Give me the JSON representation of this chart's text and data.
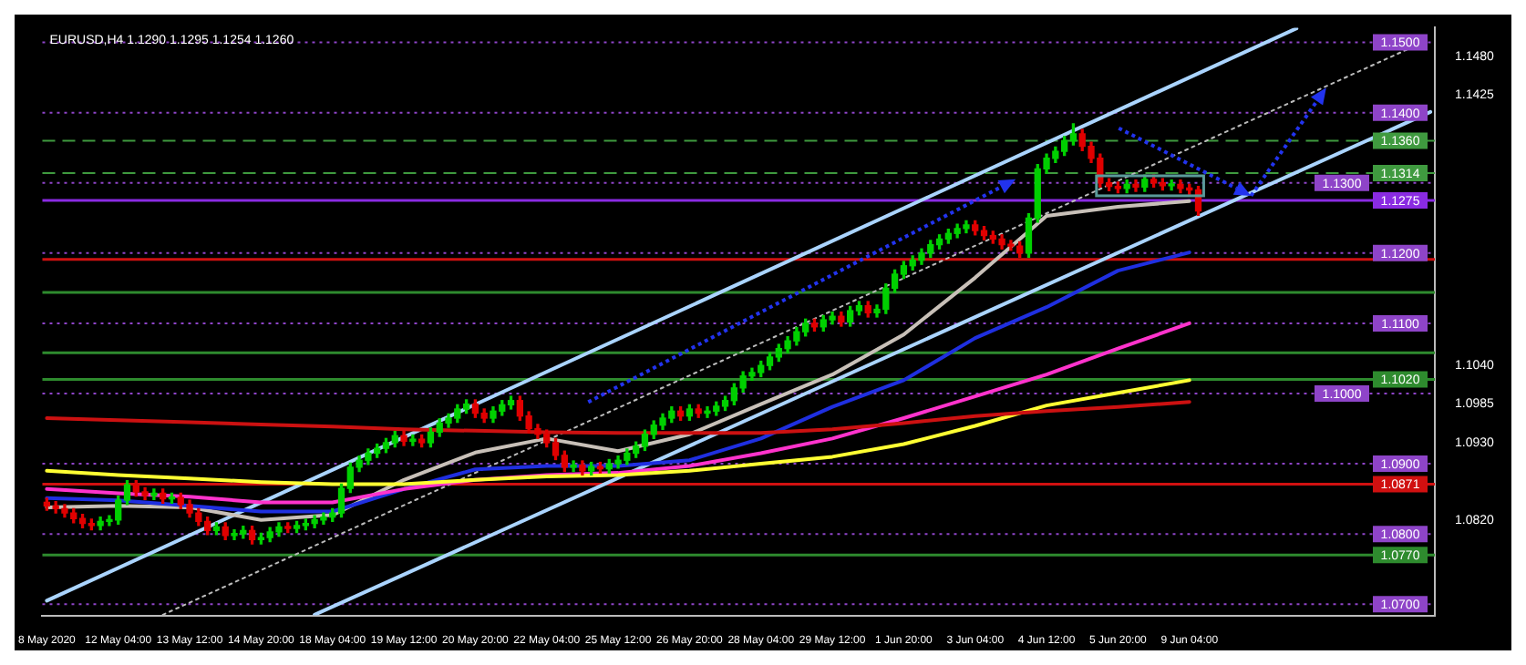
{
  "chart_data": {
    "type": "candlestick",
    "title": "EURUSD,H4 1.1290 1.1295 1.1254 1.1260",
    "categories": [
      "8 May 2020",
      null,
      null,
      null,
      null,
      null,
      null,
      null,
      "12 May 04:00",
      null,
      null,
      null,
      null,
      null,
      null,
      null,
      "13 May 12:00",
      null,
      null,
      null,
      null,
      null,
      null,
      null,
      "14 May 20:00",
      null,
      null,
      null,
      null,
      null,
      null,
      null,
      "18 May 04:00",
      null,
      null,
      null,
      null,
      null,
      null,
      null,
      "19 May 12:00",
      null,
      null,
      null,
      null,
      null,
      null,
      null,
      "20 May 20:00",
      null,
      null,
      null,
      null,
      null,
      null,
      null,
      "22 May 04:00",
      null,
      null,
      null,
      null,
      null,
      null,
      null,
      "25 May 12:00",
      null,
      null,
      null,
      null,
      null,
      null,
      null,
      "26 May 20:00",
      null,
      null,
      null,
      null,
      null,
      null,
      null,
      "28 May 04:00",
      null,
      null,
      null,
      null,
      null,
      null,
      null,
      "29 May 12:00",
      null,
      null,
      null,
      null,
      null,
      null,
      null,
      "1 Jun 20:00",
      null,
      null,
      null,
      null,
      null,
      null,
      null,
      "3 Jun 04:00",
      null,
      null,
      null,
      null,
      null,
      null,
      null,
      "4 Jun 12:00",
      null,
      null,
      null,
      null,
      null,
      null,
      null,
      "5 Jun 20:00",
      null,
      null,
      null,
      null,
      null,
      null,
      null,
      "9 Jun 04:00",
      null,
      null,
      null,
      null,
      null,
      null,
      null,
      null,
      null,
      null,
      null,
      null,
      null,
      null,
      null,
      null,
      null,
      null,
      null,
      null,
      null,
      null,
      null,
      null,
      null,
      null,
      null
    ],
    "ohlc": [
      [
        1.0845,
        1.0851,
        1.0834,
        1.084
      ],
      [
        1.084,
        1.0846,
        1.083,
        1.0836
      ],
      [
        1.0836,
        1.0842,
        1.0824,
        1.083
      ],
      [
        1.083,
        1.0836,
        1.0816,
        1.0822
      ],
      [
        1.0822,
        1.0828,
        1.0809,
        1.0815
      ],
      [
        1.0815,
        1.0821,
        1.0806,
        1.0812
      ],
      [
        1.0812,
        1.0824,
        1.0806,
        1.0818
      ],
      [
        1.0818,
        1.0826,
        1.0812,
        1.082
      ],
      [
        1.082,
        1.0854,
        1.0814,
        1.0848
      ],
      [
        1.0848,
        1.0876,
        1.0842,
        1.087
      ],
      [
        1.087,
        1.0876,
        1.0854,
        1.086
      ],
      [
        1.086,
        1.0866,
        1.0849,
        1.0855
      ],
      [
        1.0855,
        1.0864,
        1.0849,
        1.0858
      ],
      [
        1.0858,
        1.0864,
        1.0844,
        1.085
      ],
      [
        1.085,
        1.0858,
        1.0844,
        1.0852
      ],
      [
        1.0852,
        1.0858,
        1.0836,
        1.0842
      ],
      [
        1.0842,
        1.0848,
        1.0824,
        1.083
      ],
      [
        1.083,
        1.0836,
        1.0812,
        1.0818
      ],
      [
        1.0818,
        1.0824,
        1.0799,
        1.0805
      ],
      [
        1.0805,
        1.0816,
        1.0799,
        1.081
      ],
      [
        1.081,
        1.0816,
        1.0792,
        1.0798
      ],
      [
        1.0798,
        1.0806,
        1.0792,
        1.08
      ],
      [
        1.08,
        1.0811,
        1.0794,
        1.0805
      ],
      [
        1.0805,
        1.0811,
        1.0786,
        1.0792
      ],
      [
        1.0792,
        1.0801,
        1.0786,
        1.0795
      ],
      [
        1.0795,
        1.0809,
        1.0789,
        1.0803
      ],
      [
        1.0803,
        1.0816,
        1.0797,
        1.081
      ],
      [
        1.081,
        1.0816,
        1.0802,
        1.0808
      ],
      [
        1.0808,
        1.0818,
        1.0802,
        1.0812
      ],
      [
        1.0812,
        1.0821,
        1.0806,
        1.0815
      ],
      [
        1.0815,
        1.0826,
        1.0809,
        1.082
      ],
      [
        1.082,
        1.083,
        1.0814,
        1.0824
      ],
      [
        1.0824,
        1.0836,
        1.0818,
        1.083
      ],
      [
        1.083,
        1.0871,
        1.0824,
        1.0865
      ],
      [
        1.0865,
        1.0901,
        1.0859,
        1.0895
      ],
      [
        1.0895,
        1.0911,
        1.0889,
        1.0905
      ],
      [
        1.0905,
        1.0921,
        1.0899,
        1.0915
      ],
      [
        1.0915,
        1.0928,
        1.0909,
        1.0922
      ],
      [
        1.0922,
        1.0936,
        1.0916,
        1.093
      ],
      [
        1.093,
        1.0946,
        1.0924,
        1.094
      ],
      [
        1.094,
        1.0946,
        1.0926,
        1.0932
      ],
      [
        1.0932,
        1.0941,
        1.0926,
        1.0935
      ],
      [
        1.0935,
        1.0941,
        1.0924,
        1.093
      ],
      [
        1.093,
        1.0951,
        1.0924,
        1.0945
      ],
      [
        1.0945,
        1.0964,
        1.0939,
        1.0958
      ],
      [
        1.0958,
        1.0971,
        1.0952,
        1.0965
      ],
      [
        1.0965,
        1.0984,
        1.0959,
        1.0978
      ],
      [
        1.0978,
        1.0991,
        1.0972,
        1.0985
      ],
      [
        1.0985,
        1.0991,
        1.0966,
        1.0972
      ],
      [
        1.0972,
        1.0978,
        1.0959,
        1.0965
      ],
      [
        1.0965,
        1.0981,
        1.0959,
        1.0975
      ],
      [
        1.0975,
        1.099,
        1.0969,
        1.0984
      ],
      [
        1.0984,
        1.0996,
        1.0978,
        1.099
      ],
      [
        1.099,
        1.0996,
        1.0962,
        1.0968
      ],
      [
        1.0968,
        1.0974,
        1.0944,
        1.095
      ],
      [
        1.095,
        1.0956,
        1.0936,
        1.0942
      ],
      [
        1.0942,
        1.0948,
        1.0924,
        1.093
      ],
      [
        1.093,
        1.0936,
        1.0906,
        1.0912
      ],
      [
        1.0912,
        1.0918,
        1.0889,
        1.0895
      ],
      [
        1.0895,
        1.0904,
        1.0889,
        1.0898
      ],
      [
        1.0898,
        1.0904,
        1.0884,
        1.089
      ],
      [
        1.089,
        1.0902,
        1.0884,
        1.0896
      ],
      [
        1.0896,
        1.0902,
        1.0887,
        1.0893
      ],
      [
        1.0893,
        1.0906,
        1.0887,
        1.09
      ],
      [
        1.09,
        1.0911,
        1.0894,
        1.0905
      ],
      [
        1.0905,
        1.0921,
        1.0899,
        1.0915
      ],
      [
        1.0915,
        1.0931,
        1.0909,
        1.0925
      ],
      [
        1.0925,
        1.0948,
        1.0919,
        1.0942
      ],
      [
        1.0942,
        1.0961,
        1.0936,
        1.0955
      ],
      [
        1.0955,
        1.0971,
        1.0949,
        1.0965
      ],
      [
        1.0965,
        1.0981,
        1.0959,
        1.0975
      ],
      [
        1.0975,
        1.0981,
        1.0962,
        1.0968
      ],
      [
        1.0968,
        1.0984,
        1.0962,
        1.0978
      ],
      [
        1.0978,
        1.0984,
        1.0966,
        1.0972
      ],
      [
        1.0972,
        1.0981,
        1.0966,
        1.0975
      ],
      [
        1.0975,
        1.0988,
        1.0969,
        1.0982
      ],
      [
        1.0982,
        1.0996,
        1.0976,
        1.099
      ],
      [
        1.099,
        1.1014,
        1.0984,
        1.1008
      ],
      [
        1.1008,
        1.1031,
        1.1002,
        1.1025
      ],
      [
        1.1025,
        1.1036,
        1.1019,
        1.103
      ],
      [
        1.103,
        1.1046,
        1.1024,
        1.104
      ],
      [
        1.104,
        1.1058,
        1.1034,
        1.1052
      ],
      [
        1.1052,
        1.107,
        1.1046,
        1.1064
      ],
      [
        1.1064,
        1.1081,
        1.1058,
        1.1075
      ],
      [
        1.1075,
        1.1094,
        1.1069,
        1.1088
      ],
      [
        1.1088,
        1.1106,
        1.1082,
        1.11
      ],
      [
        1.11,
        1.1106,
        1.1089,
        1.1095
      ],
      [
        1.1095,
        1.1111,
        1.1089,
        1.1105
      ],
      [
        1.1105,
        1.1116,
        1.1099,
        1.111
      ],
      [
        1.111,
        1.1116,
        1.1096,
        1.1102
      ],
      [
        1.1102,
        1.1124,
        1.1096,
        1.1118
      ],
      [
        1.1118,
        1.1131,
        1.1112,
        1.1125
      ],
      [
        1.1125,
        1.1131,
        1.1109,
        1.1115
      ],
      [
        1.1115,
        1.1126,
        1.1109,
        1.112
      ],
      [
        1.112,
        1.1156,
        1.1114,
        1.115
      ],
      [
        1.115,
        1.1176,
        1.1144,
        1.117
      ],
      [
        1.117,
        1.1188,
        1.1164,
        1.1182
      ],
      [
        1.1182,
        1.1196,
        1.1176,
        1.119
      ],
      [
        1.119,
        1.1206,
        1.1184,
        1.12
      ],
      [
        1.12,
        1.1218,
        1.1194,
        1.1212
      ],
      [
        1.1212,
        1.1226,
        1.1206,
        1.122
      ],
      [
        1.122,
        1.1234,
        1.1214,
        1.1228
      ],
      [
        1.1228,
        1.1241,
        1.1222,
        1.1235
      ],
      [
        1.1235,
        1.1246,
        1.1229,
        1.124
      ],
      [
        1.124,
        1.1246,
        1.1226,
        1.1232
      ],
      [
        1.1232,
        1.1238,
        1.1219,
        1.1225
      ],
      [
        1.1225,
        1.1231,
        1.1214,
        1.122
      ],
      [
        1.122,
        1.1226,
        1.1206,
        1.1212
      ],
      [
        1.1212,
        1.1218,
        1.1204,
        1.121
      ],
      [
        1.121,
        1.1216,
        1.1194,
        1.12
      ],
      [
        1.12,
        1.1256,
        1.1194,
        1.125
      ],
      [
        1.125,
        1.1326,
        1.1244,
        1.132
      ],
      [
        1.132,
        1.1341,
        1.1314,
        1.1335
      ],
      [
        1.1335,
        1.1351,
        1.1329,
        1.1345
      ],
      [
        1.1345,
        1.1366,
        1.1339,
        1.136
      ],
      [
        1.136,
        1.1384,
        1.1354,
        1.137
      ],
      [
        1.137,
        1.1376,
        1.1346,
        1.1352
      ],
      [
        1.1352,
        1.1358,
        1.1329,
        1.1335
      ],
      [
        1.1335,
        1.1341,
        1.1294,
        1.13
      ],
      [
        1.13,
        1.1306,
        1.1289,
        1.1295
      ],
      [
        1.1295,
        1.1301,
        1.1286,
        1.1292
      ],
      [
        1.1292,
        1.1304,
        1.1286,
        1.1298
      ],
      [
        1.1298,
        1.1304,
        1.1288,
        1.1294
      ],
      [
        1.1294,
        1.1311,
        1.1288,
        1.1305
      ],
      [
        1.1305,
        1.1311,
        1.1294,
        1.13
      ],
      [
        1.13,
        1.1306,
        1.129,
        1.1296
      ],
      [
        1.1296,
        1.1304,
        1.129,
        1.1298
      ],
      [
        1.1298,
        1.1304,
        1.1286,
        1.1292
      ],
      [
        1.1292,
        1.1298,
        1.1284,
        1.129
      ],
      [
        1.129,
        1.1295,
        1.1254,
        1.126
      ],
      null,
      null,
      null,
      null,
      null,
      null,
      null,
      null,
      null,
      null,
      null,
      null,
      null,
      null,
      null,
      null,
      null,
      null,
      null,
      null,
      null,
      null,
      null,
      null,
      null,
      null
    ],
    "colors": [
      "#e00000",
      "#e00000",
      "#e00000",
      "#e00000",
      "#e00000",
      "#e00000",
      "#00d000",
      "#00d000",
      "#00d000",
      "#00d000",
      "#e00000",
      "#e00000",
      "#00d000",
      "#e00000",
      "#00d000",
      "#e00000",
      "#e00000",
      "#e00000",
      "#e00000",
      "#00d000",
      "#e00000",
      "#00d000",
      "#00d000",
      "#e00000",
      "#00d000",
      "#00d000",
      "#00d000",
      "#e00000",
      "#00d000",
      "#00d000",
      "#00d000",
      "#00d000",
      "#00d000",
      "#00d000",
      "#00d000",
      "#00d000",
      "#00d000",
      "#00d000",
      "#00d000",
      "#00d000",
      "#e00000",
      "#00d000",
      "#e00000",
      "#00d000",
      "#00d000",
      "#00d000",
      "#00d000",
      "#00d000",
      "#e00000",
      "#e00000",
      "#00d000",
      "#00d000",
      "#00d000",
      "#e00000",
      "#e00000",
      "#e00000",
      "#e00000",
      "#e00000",
      "#e00000",
      "#00d000",
      "#e00000",
      "#00d000",
      "#e00000",
      "#00d000",
      "#00d000",
      "#00d000",
      "#00d000",
      "#00d000",
      "#00d000",
      "#00d000",
      "#00d000",
      "#e00000",
      "#00d000",
      "#e00000",
      "#00d000",
      "#00d000",
      "#00d000",
      "#00d000",
      "#00d000",
      "#00d000",
      "#00d000",
      "#00d000",
      "#00d000",
      "#00d000",
      "#00d000",
      "#00d000",
      "#e00000",
      "#00d000",
      "#00d000",
      "#e00000",
      "#00d000",
      "#00d000",
      "#e00000",
      "#00d000",
      "#00d000",
      "#00d000",
      "#00d000",
      "#00d000",
      "#00d000",
      "#00d000",
      "#00d000",
      "#00d000",
      "#00d000",
      "#00d000",
      "#e00000",
      "#e00000",
      "#e00000",
      "#e00000",
      "#e00000",
      "#e00000",
      "#00d000",
      "#00d000",
      "#00d000",
      "#00d000",
      "#00d000",
      "#00d000",
      "#e00000",
      "#e00000",
      "#e00000",
      "#e00000",
      "#e00000",
      "#00d000",
      "#e00000",
      "#00d000",
      "#e00000",
      "#e00000",
      "#00d000",
      "#e00000",
      "#e00000",
      "#e00000",
      null,
      null,
      null,
      null,
      null,
      null,
      null,
      null,
      null,
      null,
      null,
      null,
      null,
      null,
      null,
      null,
      null,
      null,
      null,
      null,
      null,
      null,
      null,
      null,
      null,
      null
    ],
    "series": [
      {
        "type": "line",
        "color": "#cc1111",
        "x": [
          "8 May 2020",
          "12 May 04:00",
          "13 May 12:00",
          "14 May 20:00",
          "18 May 04:00",
          "19 May 12:00",
          "20 May 20:00",
          "22 May 04:00",
          "25 May 12:00",
          "26 May 20:00",
          "28 May 04:00",
          "29 May 12:00",
          "1 Jun 20:00",
          "3 Jun 04:00",
          "4 Jun 12:00",
          "5 Jun 20:00",
          "9 Jun 04:00"
        ],
        "values": [
          1.0965,
          1.0962,
          1.0959,
          1.0956,
          1.0953,
          1.0949,
          1.0947,
          1.0945,
          1.0944,
          1.0944,
          1.0944,
          1.0949,
          1.0958,
          1.0968,
          1.0975,
          1.0981,
          1.0988
        ]
      },
      {
        "type": "line",
        "color": "#ffff33",
        "x": [
          "8 May 2020",
          "12 May 04:00",
          "13 May 12:00",
          "14 May 20:00",
          "18 May 04:00",
          "19 May 12:00",
          "20 May 20:00",
          "22 May 04:00",
          "25 May 12:00",
          "26 May 20:00",
          "28 May 04:00",
          "29 May 12:00",
          "1 Jun 20:00",
          "3 Jun 04:00",
          "4 Jun 12:00",
          "5 Jun 20:00",
          "9 Jun 04:00"
        ],
        "values": [
          1.089,
          1.0884,
          1.0879,
          1.0874,
          1.0871,
          1.0871,
          1.0877,
          1.0882,
          1.0884,
          1.089,
          1.09,
          1.091,
          1.0928,
          1.0954,
          1.0983,
          1.1001,
          1.1019
        ]
      },
      {
        "type": "line",
        "color": "#ff33cc",
        "x": [
          "8 May 2020",
          "12 May 04:00",
          "13 May 12:00",
          "14 May 20:00",
          "18 May 04:00",
          "19 May 12:00",
          "20 May 20:00",
          "22 May 04:00",
          "25 May 12:00",
          "26 May 20:00",
          "28 May 04:00",
          "29 May 12:00",
          "1 Jun 20:00",
          "3 Jun 04:00",
          "4 Jun 12:00",
          "5 Jun 20:00",
          "9 Jun 04:00"
        ],
        "values": [
          1.0864,
          1.0858,
          1.0853,
          1.0845,
          1.0845,
          1.0864,
          1.0877,
          1.0884,
          1.0887,
          1.0897,
          1.0915,
          1.0936,
          1.0965,
          1.0996,
          1.1027,
          1.1064,
          1.11
        ]
      },
      {
        "type": "line",
        "color": "#1f2fe0",
        "x": [
          "8 May 2020",
          "12 May 04:00",
          "13 May 12:00",
          "14 May 20:00",
          "18 May 04:00",
          "19 May 12:00",
          "20 May 20:00",
          "22 May 04:00",
          "25 May 12:00",
          "26 May 20:00",
          "28 May 04:00",
          "29 May 12:00",
          "1 Jun 20:00",
          "3 Jun 04:00",
          "4 Jun 12:00",
          "5 Jun 20:00",
          "9 Jun 04:00"
        ],
        "values": [
          1.0851,
          1.0848,
          1.084,
          1.0832,
          1.0832,
          1.0864,
          1.0892,
          1.0897,
          1.0897,
          1.0905,
          1.0936,
          1.0981,
          1.1019,
          1.1079,
          1.1123,
          1.1175,
          1.1201
        ]
      },
      {
        "type": "line",
        "color": "#c8c0b8",
        "x": [
          "8 May 2020",
          "12 May 04:00",
          "13 May 12:00",
          "14 May 20:00",
          "18 May 04:00",
          "19 May 12:00",
          "20 May 20:00",
          "22 May 04:00",
          "25 May 12:00",
          "26 May 20:00",
          "28 May 04:00",
          "29 May 12:00",
          "1 Jun 20:00",
          "3 Jun 04:00",
          "4 Jun 12:00",
          "5 Jun 20:00",
          "9 Jun 04:00"
        ],
        "values": [
          1.0838,
          1.084,
          1.0838,
          1.082,
          1.0827,
          1.0877,
          1.0916,
          1.0936,
          1.0918,
          1.0942,
          1.0985,
          1.1027,
          1.1084,
          1.1165,
          1.1253,
          1.1266,
          1.1274
        ]
      },
      {
        "type": "line",
        "color": "#aad4ff",
        "values": [
          1.0705,
          null,
          null,
          null,
          null,
          null,
          null,
          null,
          null,
          null,
          null,
          null,
          null,
          null,
          null,
          null,
          null,
          null,
          null,
          null,
          null,
          null,
          null,
          null,
          null,
          null,
          null,
          null,
          null,
          null,
          null,
          null,
          null,
          null,
          null,
          null,
          null,
          null,
          null,
          null,
          null,
          null,
          null,
          null,
          null,
          null,
          null,
          null,
          null,
          null,
          null,
          null,
          null,
          null,
          null,
          null,
          null,
          null,
          null,
          null,
          null,
          null,
          null,
          null,
          null,
          null,
          null,
          null,
          null,
          null,
          null,
          null,
          null,
          null,
          null,
          null,
          null,
          null,
          null,
          null,
          null,
          null,
          null,
          null,
          null,
          null,
          null,
          null,
          null,
          null,
          null,
          null,
          null,
          null,
          null,
          null,
          null,
          null,
          null,
          null,
          null,
          null,
          null,
          null,
          null,
          null,
          null,
          null,
          null,
          null,
          null,
          null,
          null,
          null,
          null,
          null,
          null,
          null,
          null,
          null,
          null,
          null,
          null,
          null,
          null,
          null,
          null,
          null,
          null,
          null,
          null,
          null,
          null,
          null,
          null,
          null,
          null,
          null,
          null,
          null,
          1.152,
          null,
          null,
          null,
          null,
          null,
          null,
          null,
          null,
          null,
          null,
          null,
          null,
          null,
          null,
          null
        ]
      },
      {
        "type": "line",
        "color": "#aad4ff",
        "values": [
          null,
          null,
          null,
          null,
          null,
          null,
          null,
          null,
          null,
          null,
          null,
          null,
          null,
          null,
          null,
          null,
          null,
          null,
          null,
          null,
          null,
          null,
          null,
          null,
          null,
          null,
          null,
          null,
          null,
          null,
          1.0685,
          null,
          null,
          null,
          null,
          null,
          null,
          null,
          null,
          null,
          null,
          null,
          null,
          null,
          null,
          null,
          null,
          null,
          null,
          null,
          null,
          null,
          null,
          null,
          null,
          null,
          null,
          null,
          null,
          null,
          null,
          null,
          null,
          null,
          null,
          null,
          null,
          null,
          null,
          null,
          null,
          null,
          null,
          null,
          null,
          null,
          null,
          null,
          null,
          null,
          null,
          null,
          null,
          null,
          null,
          null,
          null,
          null,
          null,
          null,
          null,
          null,
          null,
          null,
          null,
          null,
          null,
          null,
          null,
          null,
          null,
          null,
          null,
          null,
          null,
          null,
          null,
          null,
          null,
          null,
          null,
          null,
          null,
          null,
          null,
          null,
          null,
          null,
          null,
          null,
          null,
          null,
          null,
          null,
          null,
          null,
          null,
          null,
          null,
          null,
          null,
          null,
          null,
          null,
          null,
          null,
          null,
          null,
          null,
          null,
          null,
          null,
          null,
          null,
          null,
          null,
          null,
          null,
          null,
          null,
          null,
          null,
          null,
          null,
          null,
          1.1401
        ]
      },
      {
        "type": "line",
        "color": "#bbbbbb",
        "line_style": "dotted",
        "values": [
          null,
          null,
          null,
          null,
          null,
          null,
          null,
          null,
          null,
          null,
          null,
          null,
          null,
          1.0685,
          null,
          null,
          null,
          null,
          null,
          null,
          null,
          null,
          null,
          null,
          null,
          null,
          null,
          null,
          null,
          null,
          null,
          null,
          null,
          null,
          null,
          null,
          null,
          null,
          null,
          null,
          null,
          null,
          null,
          null,
          null,
          null,
          null,
          null,
          null,
          null,
          null,
          null,
          null,
          null,
          null,
          null,
          null,
          null,
          null,
          null,
          null,
          null,
          null,
          null,
          null,
          null,
          null,
          null,
          null,
          null,
          null,
          null,
          null,
          null,
          null,
          null,
          null,
          null,
          null,
          null,
          null,
          null,
          null,
          null,
          null,
          null,
          null,
          null,
          null,
          null,
          null,
          null,
          null,
          null,
          null,
          null,
          null,
          null,
          null,
          null,
          null,
          null,
          null,
          null,
          null,
          null,
          null,
          null,
          null,
          null,
          null,
          null,
          null,
          null,
          null,
          null,
          null,
          null,
          null,
          null,
          null,
          null,
          null,
          null,
          null,
          null,
          null,
          null,
          null,
          null,
          null,
          null,
          null,
          null,
          null,
          null,
          null,
          null,
          null,
          null,
          null,
          null,
          null,
          null,
          null,
          null,
          null,
          null,
          null,
          null,
          null,
          null,
          null,
          null,
          null,
          1.1505
        ]
      }
    ],
    "ylim": [
      1.0684,
      1.1521
    ],
    "yticks": [
      {
        "value": 1.148,
        "label": "1.1480"
      },
      1.1425,
      {
        "value": 1.104,
        "label": "1.1040"
      },
      1.0985,
      {
        "value": 1.093,
        "label": "1.0930"
      },
      {
        "value": 1.082,
        "label": "1.0820"
      }
    ],
    "marker": "none",
    "ref_lines": [
      {
        "axis": "y",
        "value": 1.15,
        "label": "1.1500",
        "color": "#8e44c8",
        "line_style": "dotted"
      },
      {
        "axis": "y",
        "value": 1.14,
        "label": "1.1400",
        "color": "#8e44c8",
        "line_style": "dotted"
      },
      {
        "axis": "y",
        "value": 1.136,
        "label": "1.1360",
        "color": "#3f9a3f",
        "line_style": "dashed"
      },
      {
        "axis": "y",
        "value": 1.1314,
        "label": "1.1314",
        "color": "#3f9a3f",
        "line_style": "dashed"
      },
      {
        "axis": "y",
        "value": 1.13,
        "label": "1.1300",
        "color": "#8e44c8",
        "line_style": "dotted"
      },
      {
        "axis": "y",
        "value": 1.1275,
        "label": "1.1275",
        "color": "#8a2be2",
        "line_style": "solid"
      },
      {
        "axis": "y",
        "value": 1.12,
        "label": "1.1200",
        "color": "#8e44c8",
        "line_style": "dotted"
      },
      {
        "axis": "y",
        "value": 1.1191,
        "color": "#d01010",
        "line_style": "solid"
      },
      {
        "axis": "y",
        "value": 1.1144,
        "color": "#2e8b2e",
        "line_style": "solid"
      },
      {
        "axis": "y",
        "value": 1.11,
        "label": "1.1100",
        "color": "#8e44c8",
        "line_style": "dotted"
      },
      {
        "axis": "y",
        "value": 1.1058,
        "color": "#2e8b2e",
        "line_style": "solid"
      },
      {
        "axis": "y",
        "value": 1.102,
        "label": "1.1020",
        "color": "#2e8b2e",
        "line_style": "solid"
      },
      {
        "axis": "y",
        "value": 1.1,
        "label": "1.1000",
        "color": "#8e44c8",
        "line_style": "dotted"
      },
      {
        "axis": "y",
        "value": 1.09,
        "label": "1.0900",
        "color": "#8e44c8",
        "line_style": "dotted"
      },
      {
        "axis": "y",
        "value": 1.0871,
        "label": "1.0871",
        "color": "#d01010",
        "line_style": "solid"
      },
      {
        "axis": "y",
        "value": 1.08,
        "label": "1.0800",
        "color": "#8e44c8",
        "line_style": "dotted"
      },
      {
        "axis": "y",
        "value": 1.077,
        "label": "1.0770",
        "color": "#2e8b2e",
        "line_style": "solid"
      },
      {
        "axis": "y",
        "value": 1.07,
        "label": "1.0700",
        "color": "#8e44c8",
        "line_style": "dotted"
      }
    ]
  }
}
